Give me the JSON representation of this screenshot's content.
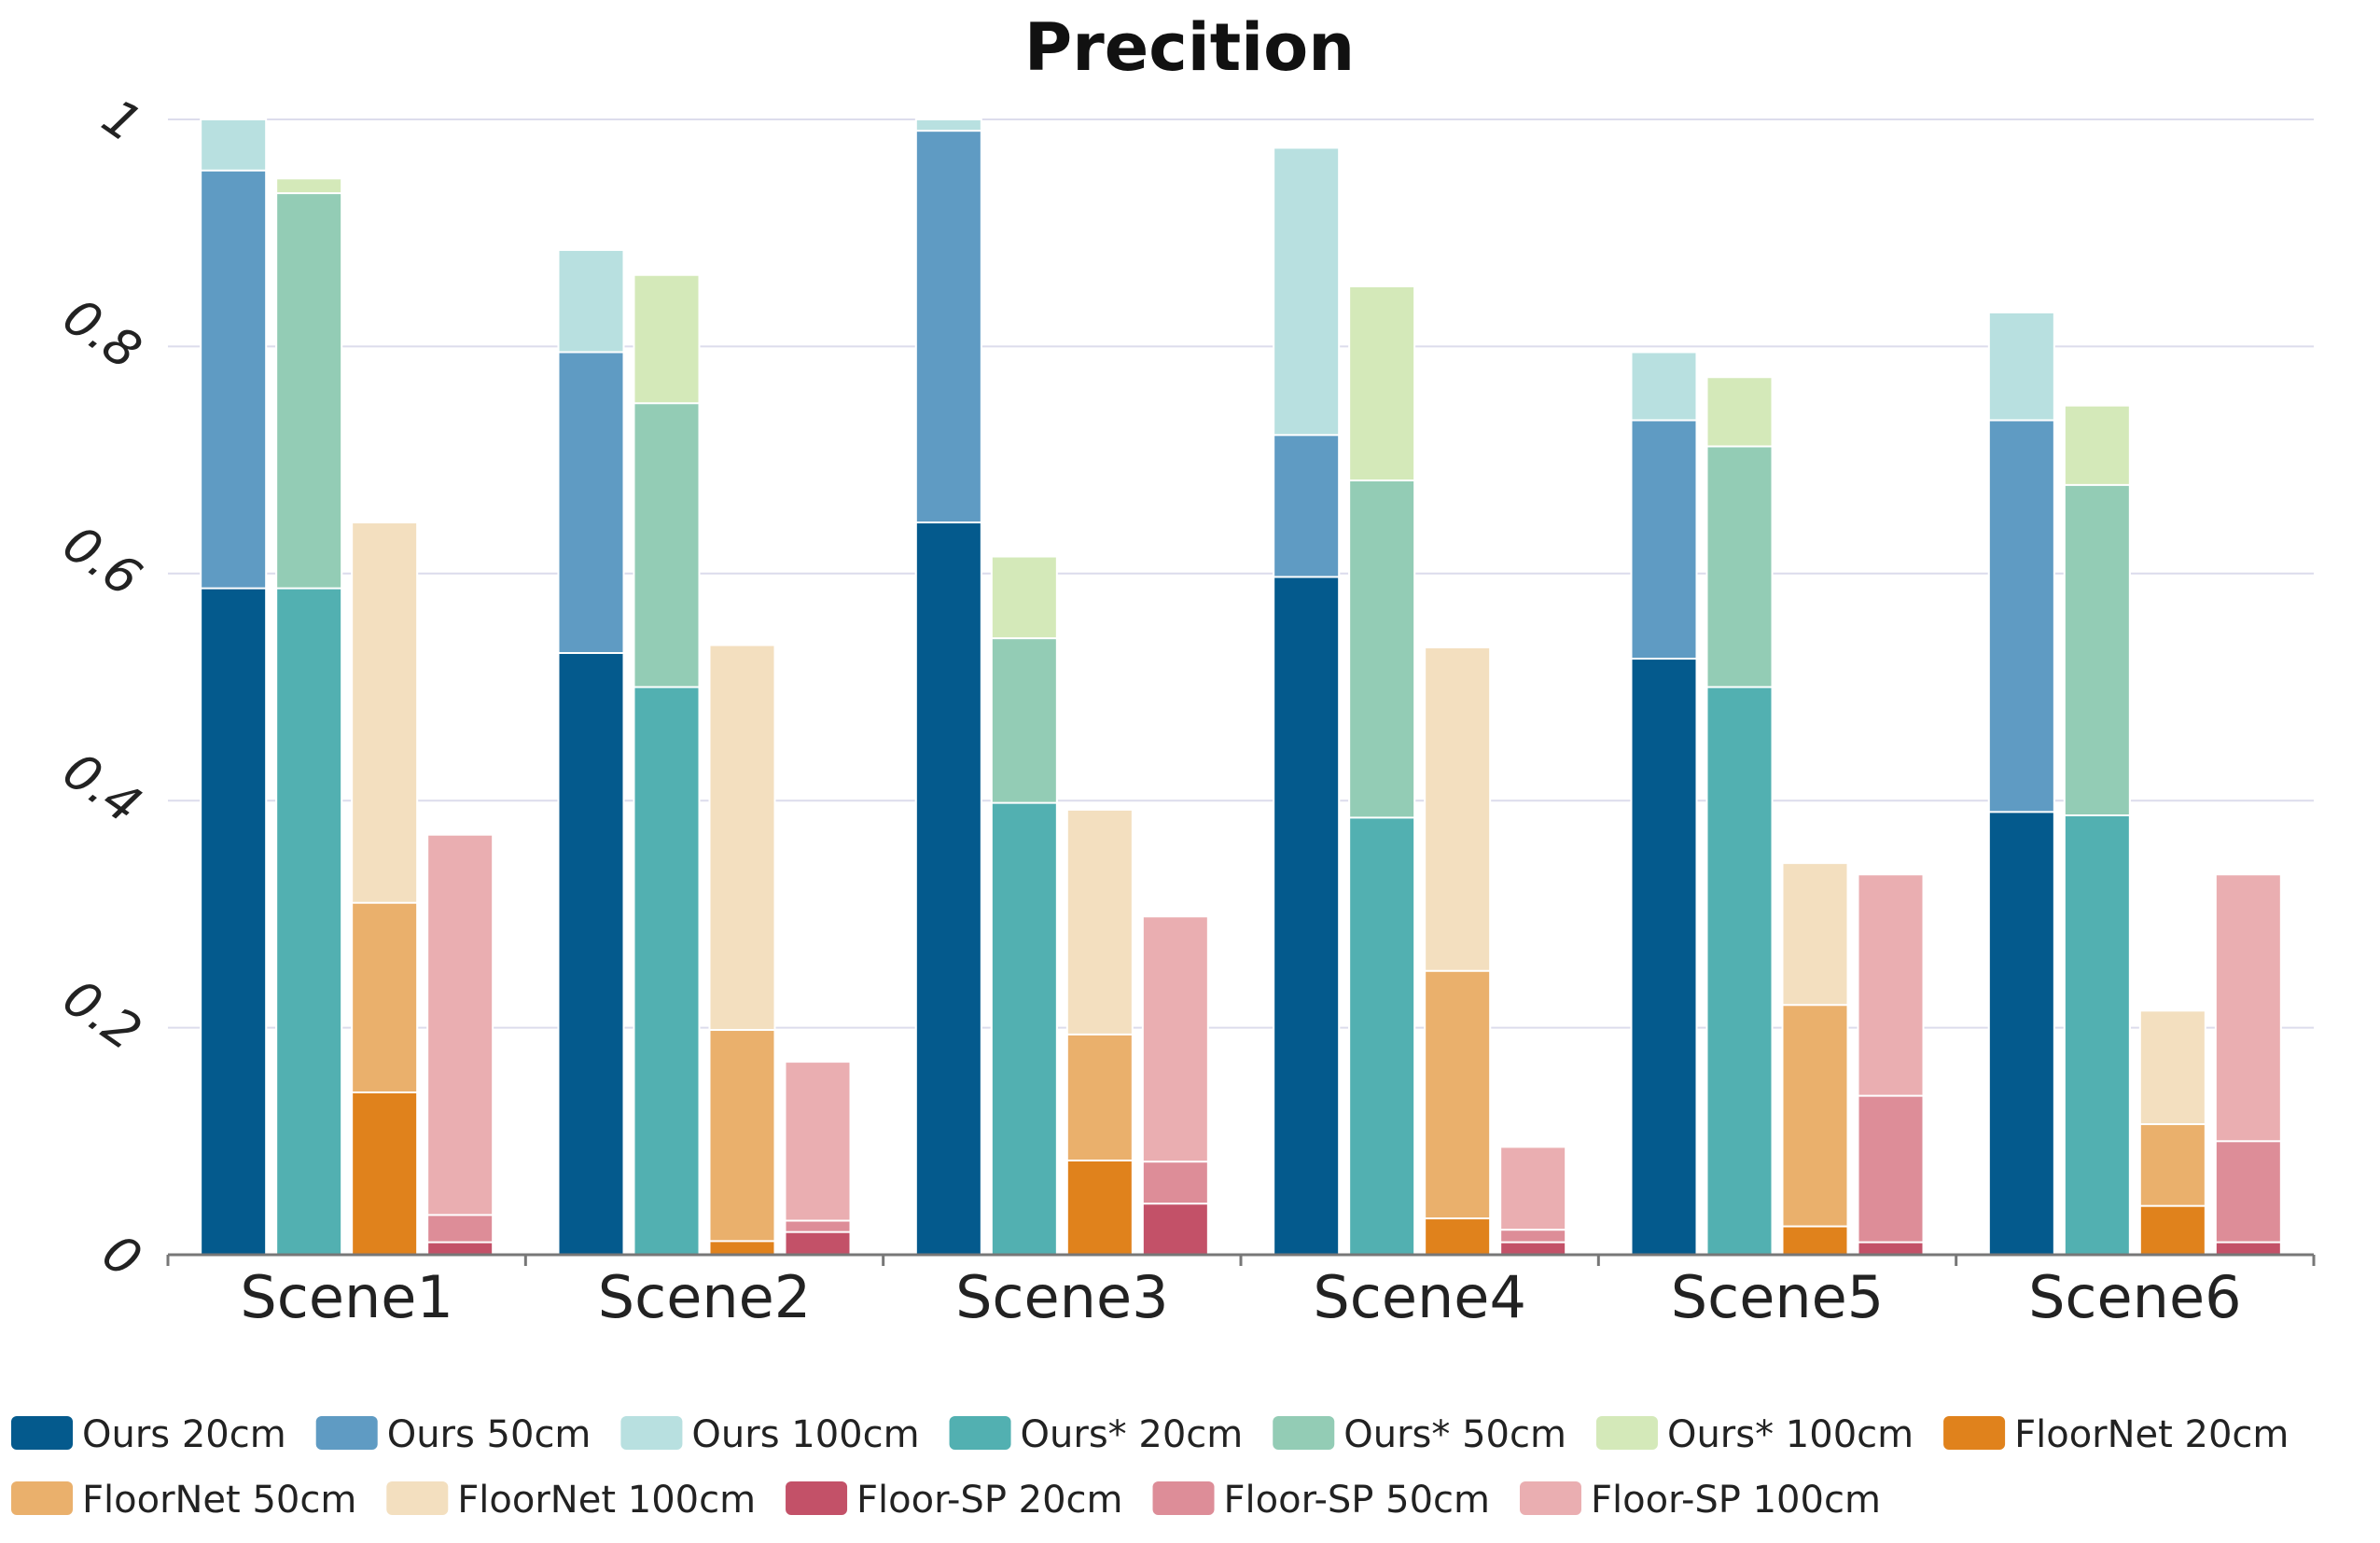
{
  "chart_data": {
    "type": "bar",
    "stacking": "overlaid-per-method",
    "title": "Precition",
    "xlabel": "",
    "ylabel": "",
    "ylim": [
      0,
      1
    ],
    "yticks": [
      0,
      0.2,
      0.4,
      0.6,
      0.8,
      1
    ],
    "ytick_labels": [
      "0",
      "0.2",
      "0.4",
      "0.6",
      "0.8",
      "1"
    ],
    "grid": true,
    "legend_position": "bottom",
    "categories": [
      "Scene1",
      "Scene2",
      "Scene3",
      "Scene4",
      "Scene5",
      "Scene6"
    ],
    "methods": [
      {
        "name": "Ours",
        "series": [
          {
            "name": "Ours 20cm",
            "color": "#045a8d",
            "values": [
              0.587,
              0.53,
              0.645,
              0.597,
              0.525,
              0.39
            ]
          },
          {
            "name": "Ours 50cm",
            "color": "#5f9bc3",
            "values": [
              0.955,
              0.795,
              0.99,
              0.722,
              0.735,
              0.735
            ]
          },
          {
            "name": "Ours 100cm",
            "color": "#b8e0e0",
            "values": [
              1.0,
              0.885,
              1.0,
              0.975,
              0.795,
              0.83
            ]
          }
        ]
      },
      {
        "name": "Ours*",
        "series": [
          {
            "name": "Ours* 20cm",
            "color": "#52b0b1",
            "values": [
              0.587,
              0.5,
              0.398,
              0.385,
              0.5,
              0.387
            ]
          },
          {
            "name": "Ours* 50cm",
            "color": "#93ccb5",
            "values": [
              0.935,
              0.75,
              0.543,
              0.682,
              0.712,
              0.678
            ]
          },
          {
            "name": "Ours* 100cm",
            "color": "#d4e9b9",
            "values": [
              0.948,
              0.863,
              0.615,
              0.853,
              0.773,
              0.748
            ]
          }
        ]
      },
      {
        "name": "FloorNet",
        "series": [
          {
            "name": "FloorNet 20cm",
            "color": "#e0821c",
            "values": [
              0.143,
              0.012,
              0.083,
              0.032,
              0.025,
              0.043
            ]
          },
          {
            "name": "FloorNet 50cm",
            "color": "#eab06c",
            "values": [
              0.31,
              0.198,
              0.194,
              0.25,
              0.22,
              0.115
            ]
          },
          {
            "name": "FloorNet 100cm",
            "color": "#f3dfbf",
            "values": [
              0.645,
              0.537,
              0.392,
              0.535,
              0.345,
              0.215
            ]
          }
        ]
      },
      {
        "name": "Floor-SP",
        "series": [
          {
            "name": "Floor-SP 20cm",
            "color": "#c35168",
            "values": [
              0.011,
              0.02,
              0.045,
              0.011,
              0.011,
              0.011
            ]
          },
          {
            "name": "Floor-SP 50cm",
            "color": "#dd8d98",
            "values": [
              0.035,
              0.03,
              0.082,
              0.022,
              0.14,
              0.1
            ]
          },
          {
            "name": "Floor-SP 100cm",
            "color": "#eaaeb1",
            "values": [
              0.37,
              0.17,
              0.298,
              0.095,
              0.335,
              0.335
            ]
          }
        ]
      }
    ],
    "legend": [
      "Ours 20cm",
      "Ours 50cm",
      "Ours 100cm",
      "Ours* 20cm",
      "Ours* 50cm",
      "Ours* 100cm",
      "FloorNet 20cm",
      "FloorNet 50cm",
      "FloorNet 100cm",
      "Floor-SP 20cm",
      "Floor-SP 50cm",
      "Floor-SP 100cm"
    ],
    "colors": {
      "grid": "#dcdcec",
      "axis": "#777777",
      "bar_stroke": "#ffffff"
    }
  }
}
